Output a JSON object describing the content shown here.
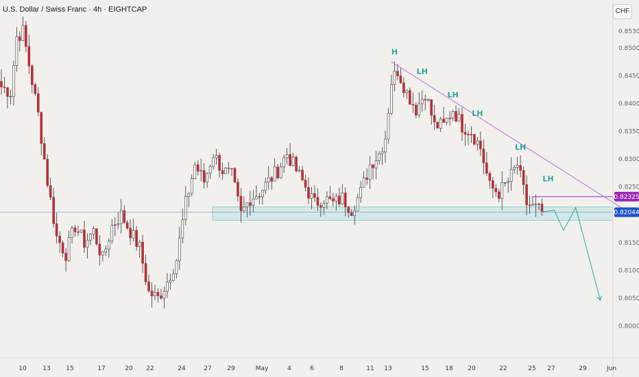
{
  "header": {
    "title": "U.S. Dollar / Swiss Franc · 4h · EIGHTCAP",
    "currency_button": "CHF"
  },
  "colors": {
    "up": "#ffffff",
    "down": "#b2313a",
    "wick": "#333333",
    "trendline": "#b86fdc",
    "support_fill": "#c8e6e4",
    "support_border": "#8fd1cc",
    "resistance_line": "#9c27b0",
    "current_price_line": "#5b7fd6",
    "annotation": "#26a69a",
    "price_tag_purple": "#9c27b0",
    "price_tag_blue": "#1e53c9"
  },
  "chart_data": {
    "type": "candlestick",
    "symbol": "USD/CHF",
    "interval": "4h",
    "ylim": [
      0.7955,
      0.858
    ],
    "price_ticks": [
      "0.85300",
      "0.85000",
      "0.84500",
      "0.84000",
      "0.83500",
      "0.83000",
      "0.82500",
      "0.82000",
      "0.81500",
      "0.81000",
      "0.80500",
      "0.80000"
    ],
    "date_ticks": [
      "10",
      "13",
      "15",
      "17",
      "20",
      "22",
      "24",
      "27",
      "29",
      "May",
      "4",
      "6",
      "8",
      "11",
      "13",
      "15",
      "18",
      "20",
      "22",
      "25",
      "27",
      "29",
      "Jun"
    ],
    "current_price": "0.82044",
    "resistance_level": "0.82325",
    "support_zone": [
      0.819,
      0.8214
    ],
    "anchors": [
      [
        0,
        0.843
      ],
      [
        3,
        0.842
      ],
      [
        5,
        0.852
      ],
      [
        7,
        0.853
      ],
      [
        9,
        0.847
      ],
      [
        12,
        0.838
      ],
      [
        15,
        0.826
      ],
      [
        18,
        0.816
      ],
      [
        21,
        0.813
      ],
      [
        24,
        0.818
      ],
      [
        27,
        0.815
      ],
      [
        30,
        0.817
      ],
      [
        33,
        0.812
      ],
      [
        36,
        0.818
      ],
      [
        39,
        0.82
      ],
      [
        42,
        0.817
      ],
      [
        45,
        0.814
      ],
      [
        48,
        0.806
      ],
      [
        51,
        0.805
      ],
      [
        54,
        0.808
      ],
      [
        57,
        0.812
      ],
      [
        60,
        0.822
      ],
      [
        63,
        0.829
      ],
      [
        66,
        0.826
      ],
      [
        69,
        0.831
      ],
      [
        72,
        0.828
      ],
      [
        75,
        0.827
      ],
      [
        78,
        0.82
      ],
      [
        81,
        0.823
      ],
      [
        84,
        0.824
      ],
      [
        87,
        0.826
      ],
      [
        90,
        0.828
      ],
      [
        93,
        0.831
      ],
      [
        96,
        0.828
      ],
      [
        99,
        0.825
      ],
      [
        102,
        0.822
      ],
      [
        105,
        0.823
      ],
      [
        108,
        0.822
      ],
      [
        111,
        0.823
      ],
      [
        114,
        0.821
      ],
      [
        117,
        0.824
      ],
      [
        120,
        0.829
      ],
      [
        123,
        0.831
      ],
      [
        125,
        0.834
      ],
      [
        127,
        0.844
      ],
      [
        129,
        0.846
      ],
      [
        132,
        0.842
      ],
      [
        135,
        0.839
      ],
      [
        138,
        0.842
      ],
      [
        141,
        0.836
      ],
      [
        144,
        0.836
      ],
      [
        147,
        0.839
      ],
      [
        150,
        0.836
      ],
      [
        153,
        0.835
      ],
      [
        156,
        0.832
      ],
      [
        159,
        0.825
      ],
      [
        162,
        0.824
      ],
      [
        165,
        0.826
      ],
      [
        168,
        0.829
      ],
      [
        171,
        0.822
      ],
      [
        174,
        0.821
      ],
      [
        176,
        0.8205
      ]
    ],
    "annotations": [
      {
        "label": "H",
        "i": 128,
        "price": 0.8488
      },
      {
        "label": "LH",
        "i": 137,
        "price": 0.8453
      },
      {
        "label": "LH",
        "i": 147,
        "price": 0.8411
      },
      {
        "label": "LH",
        "i": 155,
        "price": 0.8378
      },
      {
        "label": "LH",
        "i": 169,
        "price": 0.8317
      },
      {
        "label": "LH",
        "i": 178,
        "price": 0.826
      }
    ],
    "trendline": [
      [
        127,
        0.8475
      ],
      [
        204,
        0.8205
      ]
    ],
    "projection": [
      [
        176,
        0.8205
      ],
      [
        180,
        0.8208
      ],
      [
        183,
        0.8172
      ],
      [
        187,
        0.8213
      ],
      [
        195,
        0.8046
      ]
    ]
  }
}
